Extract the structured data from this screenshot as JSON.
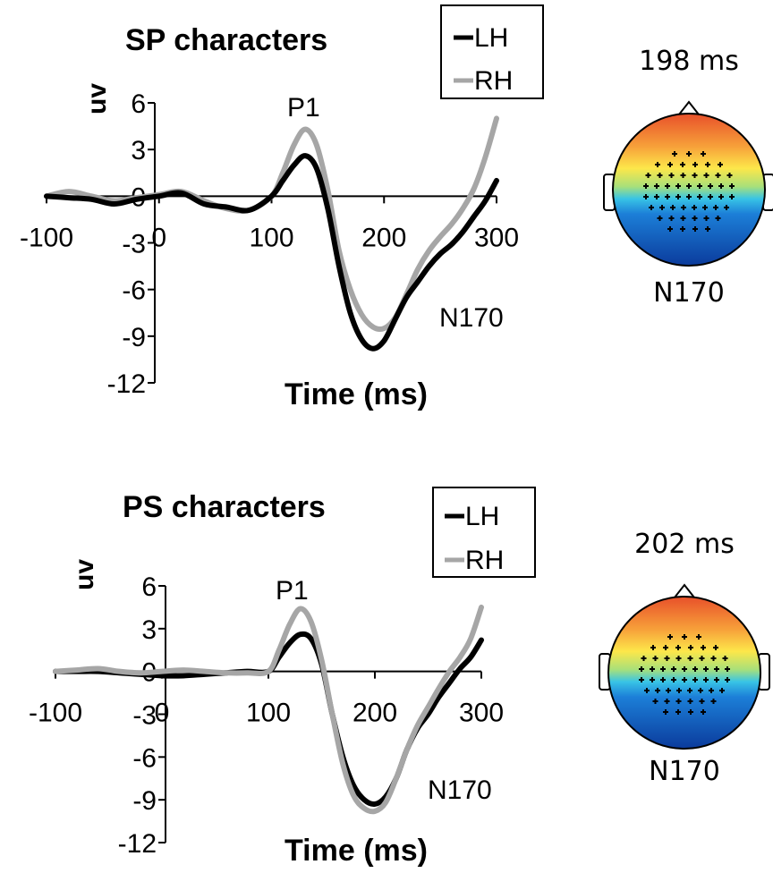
{
  "chart_data": [
    {
      "type": "line",
      "title": "SP characters",
      "xlabel": "Time (ms)",
      "ylabel": "uv",
      "xlim": [
        -100,
        300
      ],
      "ylim": [
        -12,
        6
      ],
      "xticks": [
        "-100",
        "0",
        "100",
        "200",
        "300"
      ],
      "yticks": [
        "6",
        "3",
        "0",
        "-3",
        "-6",
        "-9",
        "-12"
      ],
      "legend": {
        "position": "top-right",
        "entries": [
          "LH",
          "RH"
        ]
      },
      "annotations": [
        "P1",
        "N170"
      ],
      "series": [
        {
          "name": "LH",
          "color": "#000000",
          "x": [
            -100,
            -80,
            -60,
            -40,
            -20,
            0,
            20,
            40,
            60,
            80,
            100,
            110,
            120,
            130,
            140,
            150,
            160,
            170,
            180,
            190,
            200,
            210,
            220,
            230,
            240,
            250,
            260,
            270,
            280,
            290,
            300
          ],
          "y": [
            0.0,
            -0.1,
            -0.2,
            -0.5,
            -0.2,
            0.0,
            0.2,
            -0.5,
            -0.7,
            -0.9,
            0.0,
            1.0,
            2.0,
            2.6,
            1.8,
            -0.8,
            -4.5,
            -7.5,
            -9.2,
            -9.8,
            -9.3,
            -7.9,
            -6.5,
            -5.5,
            -4.5,
            -3.7,
            -3.1,
            -2.3,
            -1.3,
            -0.3,
            1.0
          ]
        },
        {
          "name": "RH",
          "color": "#a6a6a6",
          "x": [
            -100,
            -80,
            -60,
            -40,
            -20,
            0,
            20,
            40,
            60,
            80,
            100,
            110,
            120,
            130,
            140,
            150,
            160,
            170,
            180,
            190,
            200,
            210,
            220,
            230,
            240,
            250,
            260,
            270,
            280,
            290,
            300
          ],
          "y": [
            0.0,
            0.3,
            0.0,
            -0.3,
            -0.1,
            0.1,
            0.3,
            -0.3,
            -0.8,
            -0.9,
            0.0,
            1.5,
            3.3,
            4.3,
            3.3,
            0.4,
            -3.5,
            -6.0,
            -7.6,
            -8.4,
            -8.5,
            -7.8,
            -6.3,
            -4.7,
            -3.5,
            -2.6,
            -1.8,
            -0.8,
            0.5,
            2.5,
            5.0
          ]
        }
      ],
      "topomap": {
        "time_label": "198 ms",
        "component_label": "N170"
      }
    },
    {
      "type": "line",
      "title": "PS characters",
      "xlabel": "Time (ms)",
      "ylabel": "uv",
      "xlim": [
        -100,
        300
      ],
      "ylim": [
        -12,
        6
      ],
      "xticks": [
        "-100",
        "0",
        "100",
        "200",
        "300"
      ],
      "yticks": [
        "6",
        "3",
        "0",
        "-3",
        "-6",
        "-9",
        "-12"
      ],
      "legend": {
        "position": "top-right",
        "entries": [
          "LH",
          "RH"
        ]
      },
      "annotations": [
        "P1",
        "N170"
      ],
      "series": [
        {
          "name": "LH",
          "color": "#000000",
          "x": [
            -100,
            -80,
            -60,
            -40,
            -20,
            0,
            20,
            40,
            60,
            80,
            100,
            110,
            120,
            130,
            140,
            150,
            160,
            170,
            180,
            190,
            200,
            210,
            220,
            230,
            240,
            250,
            260,
            270,
            280,
            290,
            300
          ],
          "y": [
            0.0,
            0.0,
            0.0,
            -0.1,
            -0.2,
            -0.3,
            -0.3,
            -0.2,
            -0.1,
            0.0,
            0.0,
            1.0,
            2.0,
            2.6,
            2.3,
            0.5,
            -3.0,
            -6.0,
            -8.0,
            -9.0,
            -9.3,
            -8.8,
            -7.5,
            -5.5,
            -4.0,
            -3.0,
            -1.8,
            -0.8,
            0.2,
            1.0,
            2.2
          ]
        },
        {
          "name": "RH",
          "color": "#a6a6a6",
          "x": [
            -100,
            -80,
            -60,
            -40,
            -20,
            0,
            20,
            40,
            60,
            80,
            100,
            110,
            120,
            130,
            140,
            150,
            160,
            170,
            180,
            190,
            200,
            210,
            220,
            230,
            240,
            250,
            260,
            270,
            280,
            290,
            300
          ],
          "y": [
            0.0,
            0.1,
            0.2,
            0.0,
            -0.1,
            0.0,
            0.1,
            0.0,
            -0.1,
            -0.1,
            0.0,
            1.5,
            3.3,
            4.4,
            3.5,
            0.8,
            -3.0,
            -6.5,
            -8.7,
            -9.6,
            -9.8,
            -9.2,
            -7.5,
            -5.5,
            -3.8,
            -2.5,
            -1.2,
            0.0,
            1.0,
            2.3,
            4.5
          ]
        }
      ],
      "topomap": {
        "time_label": "202 ms",
        "component_label": "N170"
      }
    }
  ]
}
